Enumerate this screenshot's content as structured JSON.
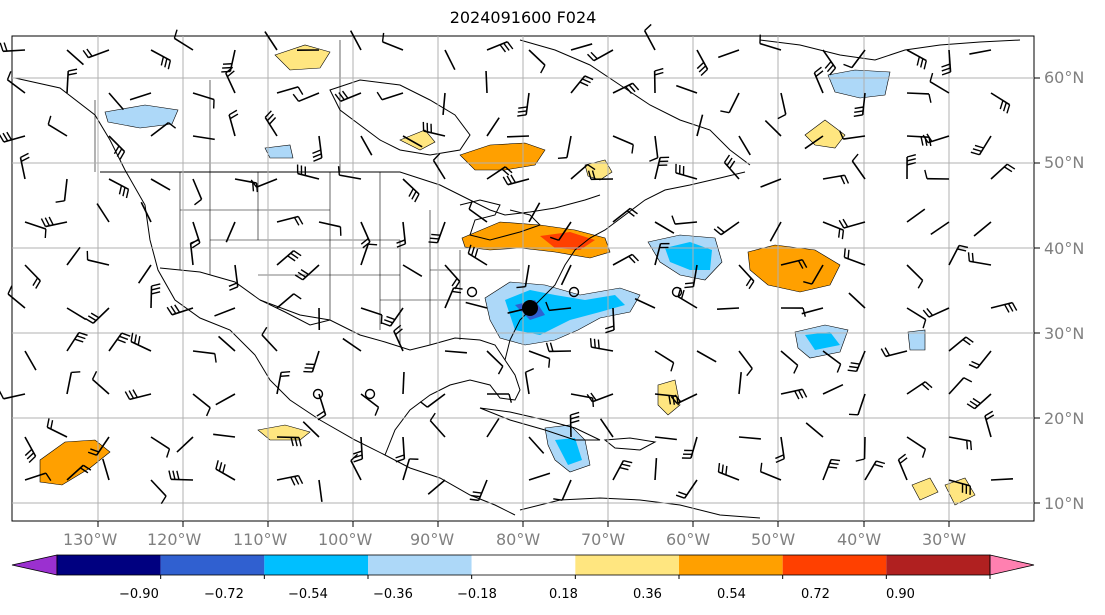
{
  "title": "2024091600 F024",
  "lon_labels": [
    "130°W",
    "120°W",
    "110°W",
    "100°W",
    "90°W",
    "80°W",
    "70°W",
    "60°W",
    "50°W",
    "40°W",
    "30°W"
  ],
  "lat_labels": [
    "60°N",
    "50°N",
    "40°N",
    "30°N",
    "20°N",
    "10°N"
  ],
  "colorbar": {
    "levels": [
      "−0.90",
      "−0.72",
      "−0.54",
      "−0.36",
      "−0.18",
      "0.18",
      "0.36",
      "0.54",
      "0.72",
      "0.90"
    ],
    "colors": [
      "#9b30d0",
      "#000080",
      "#3060d0",
      "#00bfff",
      "#add8f8",
      "#ffffff",
      "#ffe680",
      "#ffa000",
      "#ff4000",
      "#b02020",
      "#ff80b0"
    ]
  },
  "colors": {
    "coastline": "#000000",
    "grid": "#b0b0b0",
    "wind_barb": "#000000",
    "tick_label": "#808080"
  }
}
